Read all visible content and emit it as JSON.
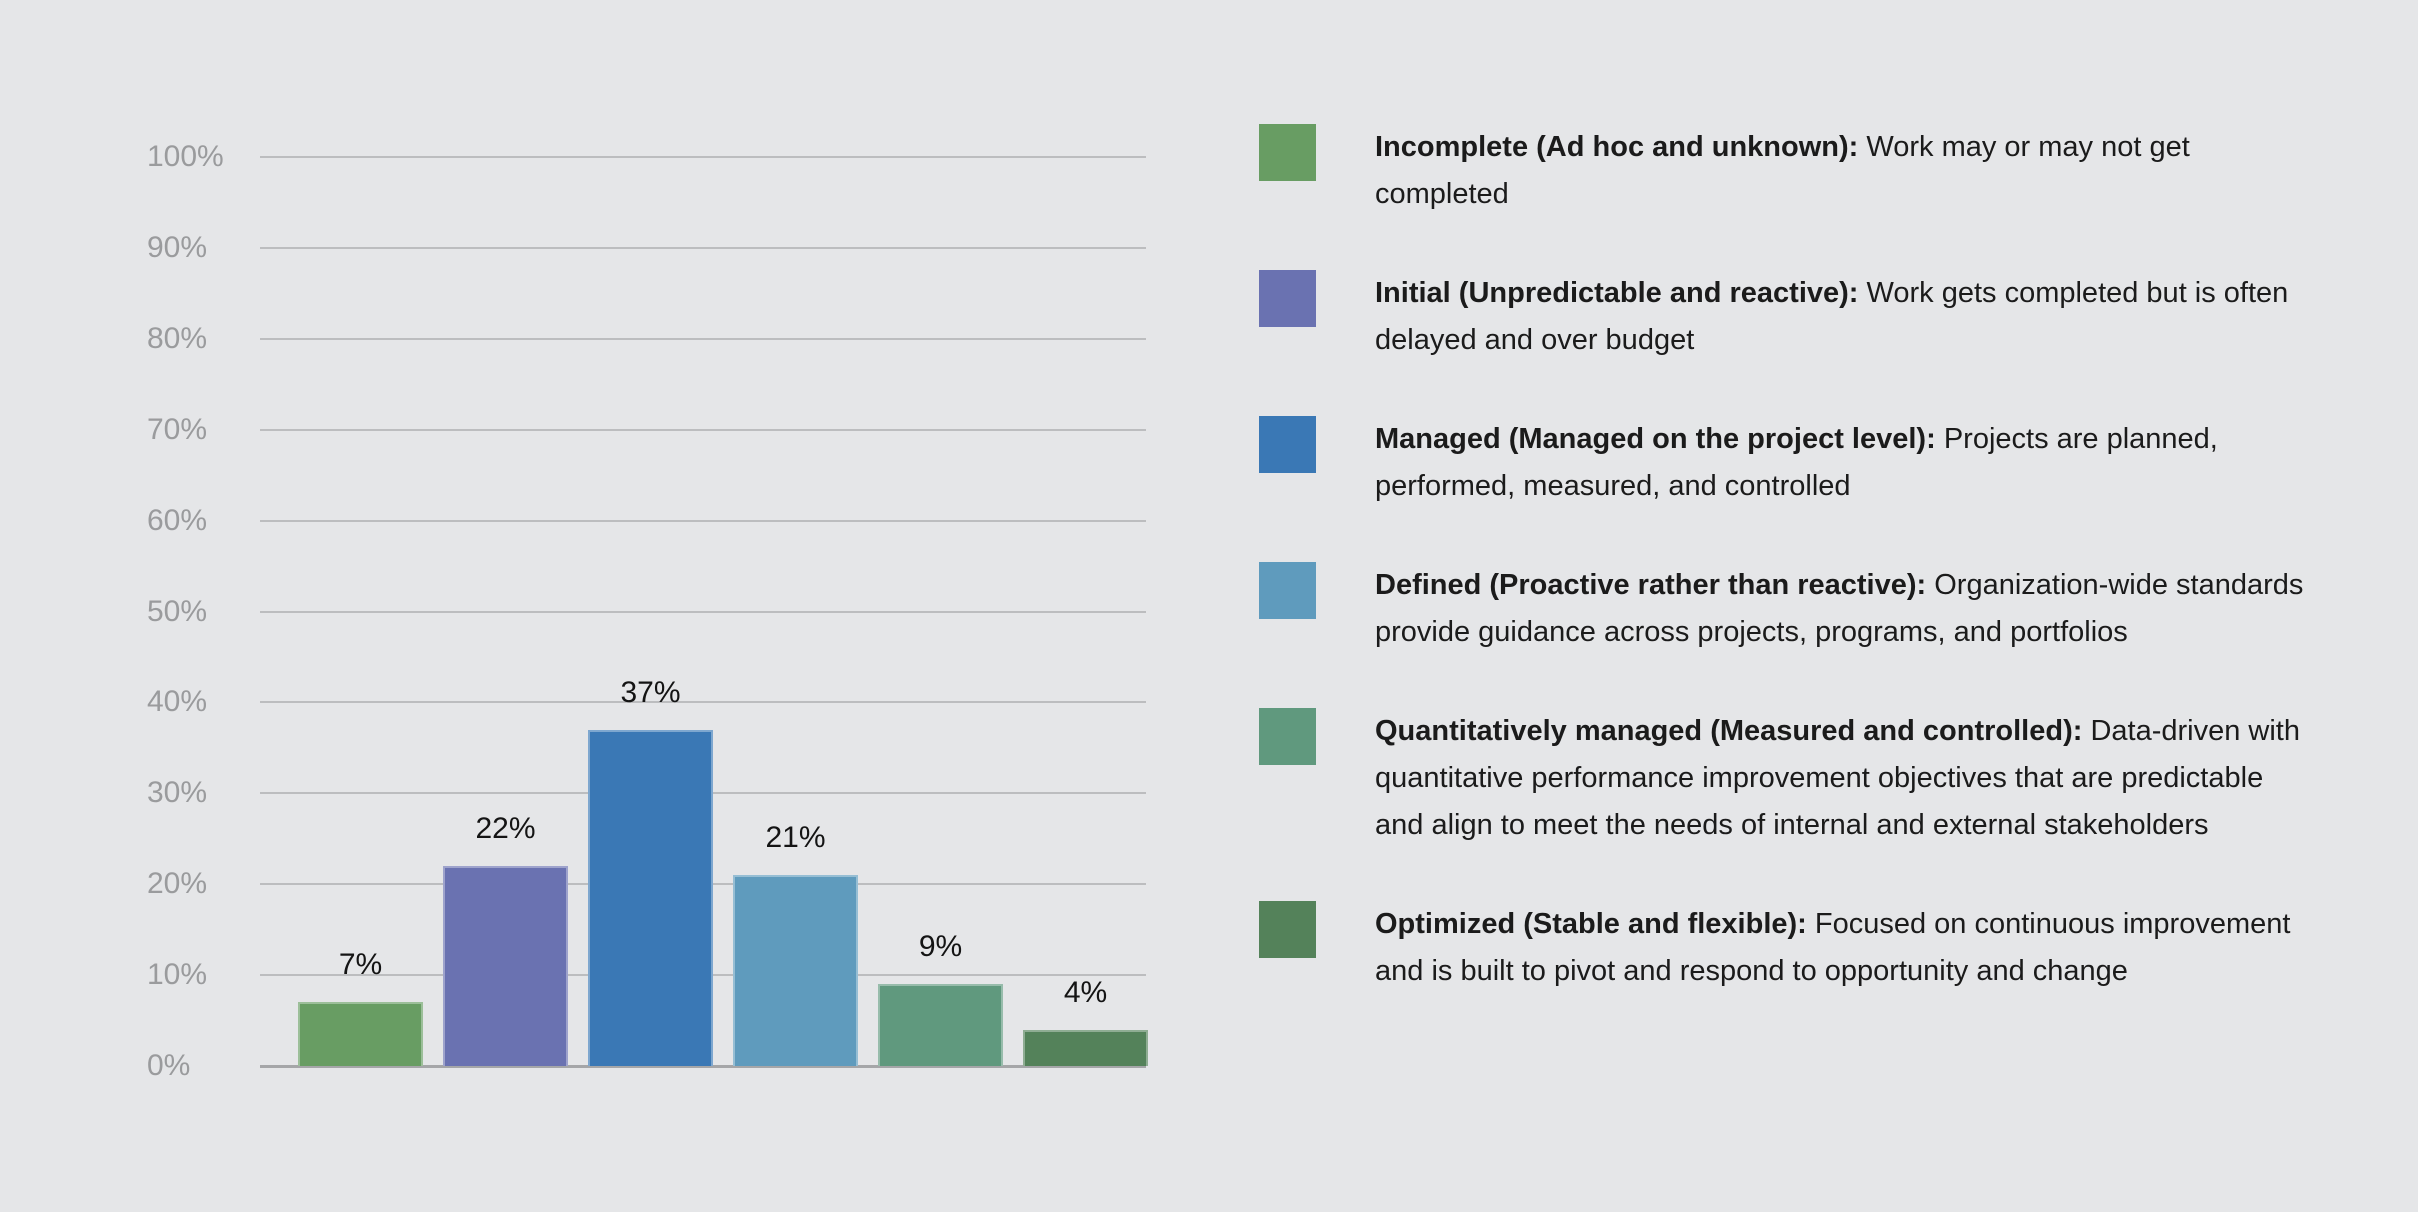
{
  "background": "#e5e6e8",
  "chart_data": {
    "type": "bar",
    "title": "",
    "categories": [
      "Incomplete (Ad hoc and unknown)",
      "Initial (Unpredictable and reactive)",
      "Managed (Managed on the project level)",
      "Defined (Proactive rather than reactive)",
      "Quantitatively managed (Measured and controlled)",
      "Optimized (Stable and flexible)"
    ],
    "values": [
      7,
      22,
      37,
      21,
      9,
      4
    ],
    "value_labels": [
      "7%",
      "22%",
      "37%",
      "21%",
      "9%",
      "4%"
    ],
    "bar_colors": [
      "#689d63",
      "#6a72b1",
      "#3a78b5",
      "#5f9bbd",
      "#60997e",
      "#54825a"
    ],
    "xlabel": "",
    "ylabel": "",
    "ylim": [
      0,
      100
    ],
    "yticks": [
      {
        "value": 100,
        "label": "100%"
      },
      {
        "value": 90,
        "label": "90%"
      },
      {
        "value": 80,
        "label": "80%"
      },
      {
        "value": 70,
        "label": "70%"
      },
      {
        "value": 60,
        "label": "60%"
      },
      {
        "value": 50,
        "label": "50%"
      },
      {
        "value": 40,
        "label": "40%"
      },
      {
        "value": 30,
        "label": "30%"
      },
      {
        "value": 20,
        "label": "20%"
      },
      {
        "value": 10,
        "label": "10%"
      },
      {
        "value": 0,
        "label": "0%"
      }
    ],
    "grid": true,
    "gridline_color": "#bcbdbf",
    "baseline_color": "#a5a6a8",
    "tick_label_color": "#9a9b9d",
    "value_label_color": "#141414",
    "legend_position": "right"
  },
  "legend": {
    "items": [
      {
        "label": "Incomplete (Ad hoc and unknown):",
        "description": "Work may or may not get completed",
        "color": "#689d63"
      },
      {
        "label": "Initial (Unpredictable and reactive):",
        "description": "Work gets completed but is often delayed and over budget",
        "color": "#6a72b1"
      },
      {
        "label": "Managed (Managed on the project level):",
        "description": "Projects are planned, performed, measured, and controlled",
        "color": "#3a78b5"
      },
      {
        "label": "Defined (Proactive rather than reactive):",
        "description": "Organization-wide standards provide guidance across projects, programs, and portfolios",
        "color": "#5f9bbd"
      },
      {
        "label": "Quantitatively managed (Measured and controlled):",
        "description": "Data-driven with quantitative performance improvement objectives that are predictable and align to meet the needs of internal and external stakeholders",
        "color": "#60997e"
      },
      {
        "label": "Optimized (Stable and flexible):",
        "description": "Focused on continuous improvement and is built to pivot and respond to opportunity and change",
        "color": "#54825a"
      }
    ]
  }
}
